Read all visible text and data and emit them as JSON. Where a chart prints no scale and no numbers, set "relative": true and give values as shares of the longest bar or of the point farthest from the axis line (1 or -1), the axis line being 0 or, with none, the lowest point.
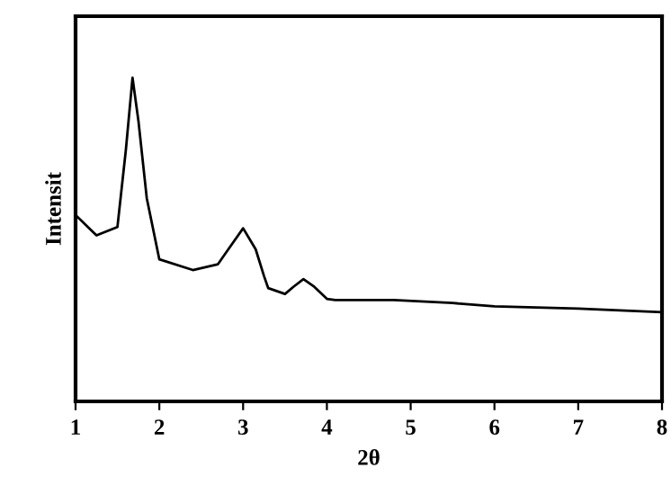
{
  "chart_data": {
    "type": "line",
    "xlabel": "2θ",
    "ylabel": "Intensit",
    "relative": true,
    "xlim": [
      1,
      8
    ],
    "xticks": [
      1,
      2,
      3,
      4,
      5,
      6,
      7,
      8
    ],
    "tick_labels": "x",
    "grid": false,
    "legend": false,
    "marker": "none",
    "line_style": "solid",
    "series": [
      {
        "color": "#000000",
        "x": [
          1.0,
          1.25,
          1.5,
          1.6,
          1.68,
          1.75,
          1.85,
          2.0,
          2.4,
          2.7,
          2.85,
          3.0,
          3.15,
          3.25,
          3.3,
          3.5,
          3.6,
          3.72,
          3.85,
          4.0,
          4.1,
          4.8,
          5.5,
          6.0,
          7.0,
          8.0
        ],
        "values": [
          0.576,
          0.513,
          0.539,
          0.776,
          1.0,
          0.868,
          0.628,
          0.439,
          0.406,
          0.424,
          0.48,
          0.535,
          0.47,
          0.387,
          0.35,
          0.332,
          0.354,
          0.378,
          0.354,
          0.317,
          0.313,
          0.313,
          0.304,
          0.294,
          0.287,
          0.276
        ]
      }
    ]
  }
}
